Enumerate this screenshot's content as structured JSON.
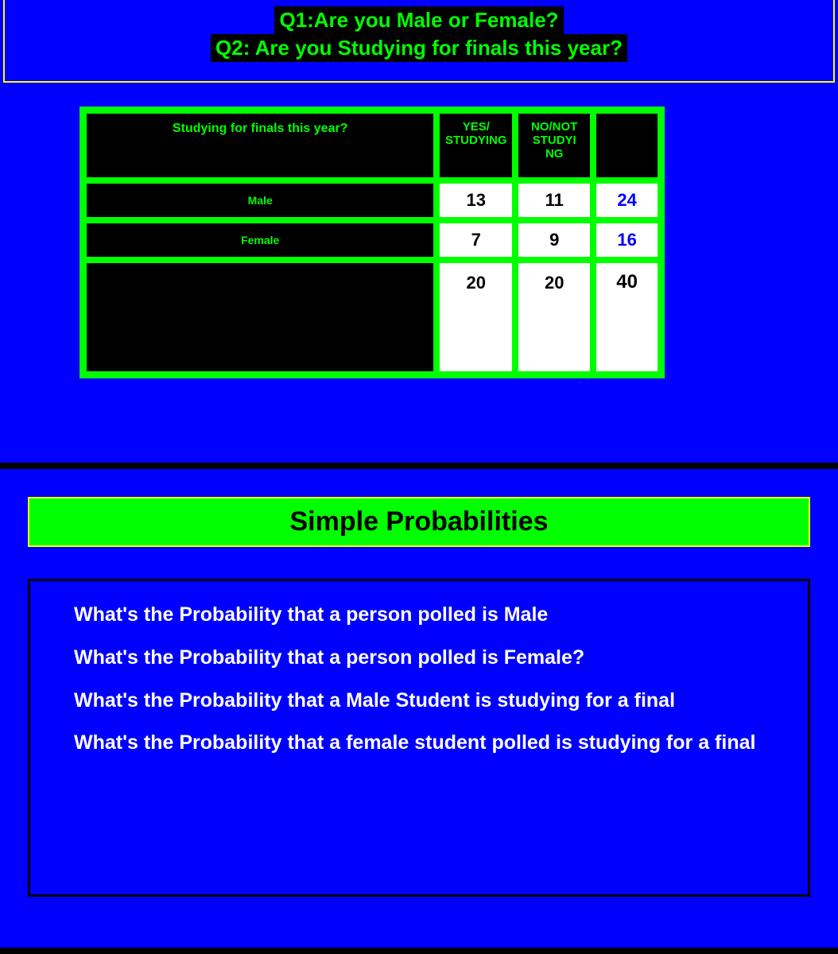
{
  "slide1": {
    "q1": "Q1:Are you Male or Female?",
    "q2": "Q2: Are you Studying for finals this year?",
    "table": {
      "header_rowlabel": "Studying for finals this year?",
      "col1": "YES/\nSTUDYING",
      "col2": "NO/NOT\nSTUDYI\nNG",
      "rows": [
        {
          "label": "Male",
          "v1": "13",
          "v2": "11",
          "tot": "24"
        },
        {
          "label": "Female",
          "v1": "7",
          "v2": "9",
          "tot": "16"
        }
      ],
      "total_row": {
        "v1": "20",
        "v2": "20",
        "gtot": "40"
      }
    }
  },
  "slide2": {
    "title": "Simple Probabilities",
    "questions": [
      "What's the Probability that a person polled is Male",
      "What's the Probability that a person polled is Female?",
      "What's the Probability that a Male Student is studying for a final",
      "What's the Probability that a female student polled is studying for a final"
    ]
  },
  "colors": {
    "slide_bg": "#0000ff",
    "accent_green": "#00ff00",
    "accent_yellow": "#ffff00",
    "cell_bg": "#ffffff",
    "row_total_text": "#0000ff",
    "text_black": "#000000",
    "text_white": "#ffffff"
  }
}
